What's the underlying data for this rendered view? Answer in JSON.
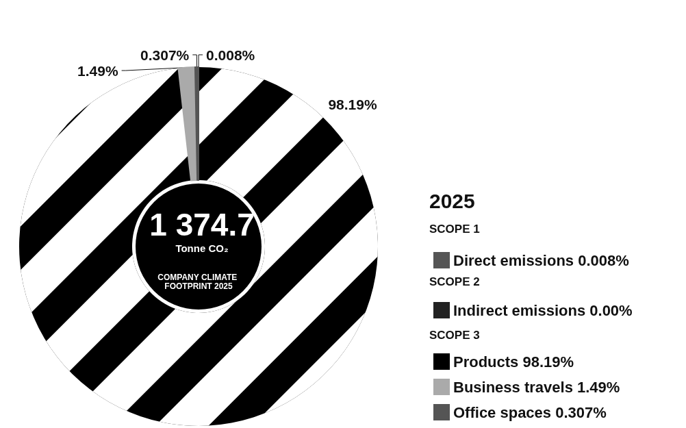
{
  "chart_data": {
    "type": "donut",
    "title": "1 374.7",
    "subtitle": "Tonne CO₂",
    "legend_title": "2025",
    "annotations": [
      "COMPANY CLIMATE FOOTPRINT 2025",
      "SCOPE 1",
      "SCOPE 2",
      "SCOPE 3"
    ],
    "categories": [
      "Direct emissions",
      "Indirect emissions",
      "Products",
      "Business travels",
      "Office spaces"
    ],
    "values": [
      0.008,
      0,
      98.19,
      1.49,
      0.307
    ],
    "value_labels": [
      "0.008%",
      "0.00%",
      "98.19%",
      "1.49%",
      "0.307%"
    ],
    "colors": [
      "#555555",
      "#222222",
      "#000000",
      "#aaaaaa",
      "#555555"
    ],
    "legend": "right"
  }
}
